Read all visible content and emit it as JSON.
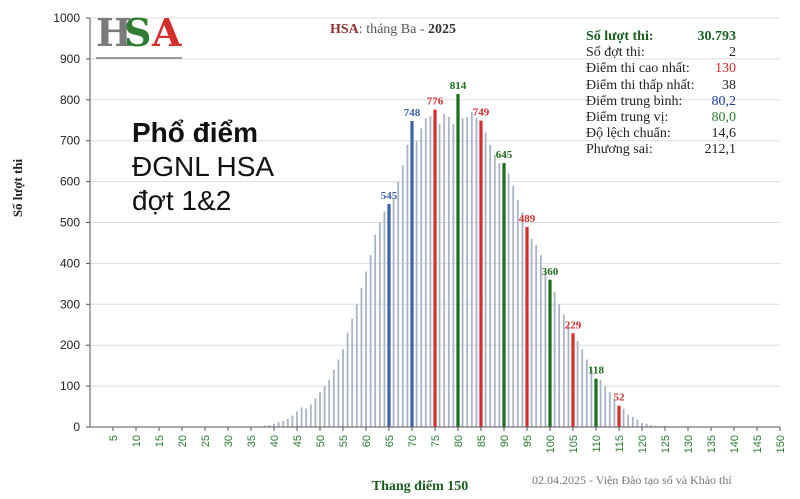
{
  "logo": {
    "h": "H",
    "s": "S",
    "a": "A"
  },
  "overlay": {
    "line1": "Phổ điểm",
    "line2": "ĐGNL HSA",
    "line3": "đợt 1&2"
  },
  "chart_title": {
    "brand": "HSA",
    "sep": ":",
    "month": "tháng Ba",
    "dash": "-",
    "year": "2025"
  },
  "stats": {
    "participants_label": "Số lượt thi:",
    "participants_value": "30.793",
    "rounds_label": "Số đợt thi:",
    "rounds_value": "2",
    "max_label": "Điểm thi cao nhất:",
    "max_value": "130",
    "min_label": "Điểm thi thấp nhất:",
    "min_value": "38",
    "mean_label": "Điểm trung bình:",
    "mean_value": "80,2",
    "median_label": "Điểm trung vị:",
    "median_value": "80,0",
    "std_label": "Độ lệch chuẩn:",
    "std_value": "14,6",
    "var_label": "Phương sai:",
    "var_value": "212,1"
  },
  "footer": "02.04.2025 - Viện Đào tạo số và Khảo thí",
  "colors": {
    "bar": "#a9b3c6",
    "axis": "#555555",
    "grid": "#dddddd",
    "red": "#d32f2f",
    "green": "#1b6e1b",
    "blue": "#3f63a8"
  },
  "chart_data": {
    "type": "bar",
    "xlabel": "Thang điểm 150",
    "ylabel": "Số lượt thi",
    "xlim": [
      0,
      150
    ],
    "ylim": [
      0,
      1000
    ],
    "xticks": [
      5,
      10,
      15,
      20,
      25,
      30,
      35,
      40,
      45,
      50,
      55,
      60,
      65,
      70,
      75,
      80,
      85,
      90,
      95,
      100,
      105,
      110,
      115,
      120,
      125,
      130,
      135,
      140,
      145,
      150
    ],
    "yticks": [
      0,
      100,
      200,
      300,
      400,
      500,
      600,
      700,
      800,
      900,
      1000
    ],
    "x": [
      38,
      39,
      40,
      41,
      42,
      43,
      44,
      45,
      46,
      47,
      48,
      49,
      50,
      51,
      52,
      53,
      54,
      55,
      56,
      57,
      58,
      59,
      60,
      61,
      62,
      63,
      64,
      65,
      66,
      67,
      68,
      69,
      70,
      71,
      72,
      73,
      74,
      75,
      76,
      77,
      78,
      79,
      80,
      81,
      82,
      83,
      84,
      85,
      86,
      87,
      88,
      89,
      90,
      91,
      92,
      93,
      94,
      95,
      96,
      97,
      98,
      99,
      100,
      101,
      102,
      103,
      104,
      105,
      106,
      107,
      108,
      109,
      110,
      111,
      112,
      113,
      114,
      115,
      116,
      117,
      118,
      119,
      120,
      121,
      122,
      123,
      124,
      125,
      126,
      127,
      128,
      129,
      130
    ],
    "values": [
      3,
      5,
      8,
      12,
      15,
      20,
      28,
      38,
      48,
      45,
      55,
      70,
      85,
      100,
      115,
      140,
      165,
      190,
      230,
      265,
      300,
      340,
      380,
      420,
      470,
      500,
      527,
      545,
      560,
      600,
      640,
      690,
      748,
      700,
      730,
      755,
      760,
      776,
      740,
      765,
      758,
      740,
      814,
      755,
      758,
      770,
      755,
      749,
      720,
      690,
      665,
      645,
      645,
      620,
      590,
      555,
      525,
      489,
      460,
      445,
      420,
      380,
      360,
      330,
      300,
      275,
      250,
      229,
      210,
      190,
      165,
      145,
      118,
      115,
      100,
      85,
      70,
      52,
      45,
      30,
      25,
      18,
      10,
      8,
      5,
      3,
      2,
      2,
      1,
      1,
      1,
      1,
      1
    ],
    "highlighted": [
      {
        "x": 65,
        "value": 545,
        "color": "blue"
      },
      {
        "x": 70,
        "value": 748,
        "color": "blue"
      },
      {
        "x": 75,
        "value": 776,
        "color": "red"
      },
      {
        "x": 80,
        "value": 814,
        "color": "green"
      },
      {
        "x": 85,
        "value": 749,
        "color": "red"
      },
      {
        "x": 90,
        "value": 645,
        "color": "green"
      },
      {
        "x": 95,
        "value": 489,
        "color": "red"
      },
      {
        "x": 100,
        "value": 360,
        "color": "green"
      },
      {
        "x": 105,
        "value": 229,
        "color": "red"
      },
      {
        "x": 110,
        "value": 118,
        "color": "green"
      },
      {
        "x": 115,
        "value": 52,
        "color": "red"
      }
    ],
    "grid": true
  }
}
